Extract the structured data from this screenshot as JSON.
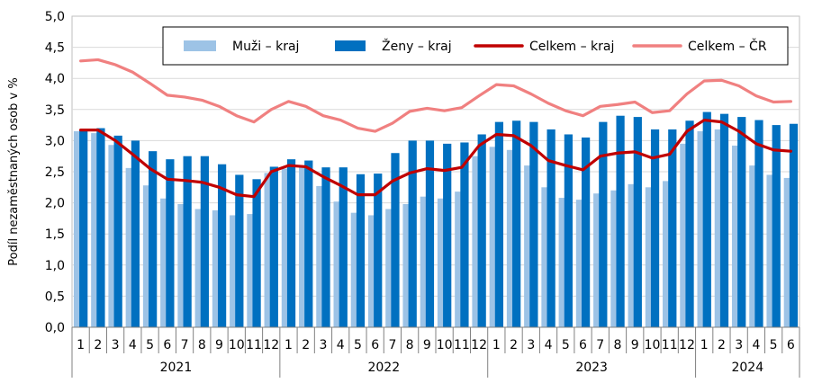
{
  "chart_data": {
    "type": "bar",
    "ylabel": "Podíl nezaměstnaných osob v %",
    "xlabel": "",
    "ylim": [
      0,
      5
    ],
    "ytick_step": 0.5,
    "ytick_labels": [
      "0,0",
      "0,5",
      "1,0",
      "1,5",
      "2,0",
      "2,5",
      "3,0",
      "3,5",
      "4,0",
      "4,5",
      "5,0"
    ],
    "grid": true,
    "legend_position": "top-right",
    "categories": [
      "1",
      "2",
      "3",
      "4",
      "5",
      "6",
      "7",
      "8",
      "9",
      "10",
      "11",
      "12",
      "1",
      "2",
      "3",
      "4",
      "5",
      "6",
      "7",
      "8",
      "9",
      "10",
      "11",
      "12",
      "1",
      "2",
      "3",
      "4",
      "5",
      "6",
      "7",
      "8",
      "9",
      "10",
      "11",
      "12",
      "1",
      "2",
      "3",
      "4",
      "5",
      "6"
    ],
    "years": [
      {
        "label": "2021",
        "months": 12
      },
      {
        "label": "2022",
        "months": 12
      },
      {
        "label": "2023",
        "months": 12
      },
      {
        "label": "2024",
        "months": 6
      }
    ],
    "series": [
      {
        "name": "Muži – kraj",
        "kind": "bar",
        "color": "#9DC3E6",
        "values": [
          3.15,
          3.12,
          2.93,
          2.56,
          2.28,
          2.07,
          1.98,
          1.9,
          1.88,
          1.8,
          1.82,
          2.48,
          2.55,
          2.58,
          2.27,
          2.02,
          1.84,
          1.8,
          1.9,
          1.98,
          2.1,
          2.07,
          2.18,
          2.75,
          2.9,
          2.85,
          2.6,
          2.25,
          2.08,
          2.05,
          2.15,
          2.2,
          2.3,
          2.25,
          2.35,
          2.95,
          3.15,
          3.18,
          2.92,
          2.6,
          2.45,
          2.4
        ]
      },
      {
        "name": "Ženy – kraj",
        "kind": "bar",
        "color": "#0070C0",
        "values": [
          3.18,
          3.2,
          3.08,
          3.0,
          2.83,
          2.7,
          2.75,
          2.75,
          2.62,
          2.45,
          2.38,
          2.58,
          2.7,
          2.68,
          2.57,
          2.57,
          2.46,
          2.47,
          2.8,
          3.0,
          3.0,
          2.95,
          2.97,
          3.1,
          3.3,
          3.32,
          3.3,
          3.18,
          3.1,
          3.05,
          3.3,
          3.4,
          3.38,
          3.18,
          3.18,
          3.32,
          3.46,
          3.43,
          3.38,
          3.33,
          3.25,
          3.27
        ]
      },
      {
        "name": "Celkem – kraj",
        "kind": "line",
        "color": "#C00000",
        "values": [
          3.17,
          3.17,
          3.0,
          2.78,
          2.55,
          2.38,
          2.36,
          2.33,
          2.25,
          2.13,
          2.1,
          2.5,
          2.6,
          2.58,
          2.42,
          2.28,
          2.13,
          2.13,
          2.35,
          2.48,
          2.55,
          2.52,
          2.57,
          2.92,
          3.1,
          3.08,
          2.92,
          2.68,
          2.6,
          2.53,
          2.75,
          2.8,
          2.82,
          2.72,
          2.78,
          3.15,
          3.33,
          3.3,
          3.15,
          2.95,
          2.85,
          2.83
        ]
      },
      {
        "name": "Celkem – ČR",
        "kind": "line",
        "color": "#F08080",
        "values": [
          4.28,
          4.3,
          4.22,
          4.1,
          3.92,
          3.73,
          3.7,
          3.65,
          3.55,
          3.4,
          3.3,
          3.5,
          3.63,
          3.55,
          3.4,
          3.33,
          3.2,
          3.15,
          3.28,
          3.47,
          3.52,
          3.48,
          3.53,
          3.72,
          3.9,
          3.88,
          3.75,
          3.6,
          3.48,
          3.4,
          3.55,
          3.58,
          3.62,
          3.45,
          3.48,
          3.75,
          3.96,
          3.97,
          3.88,
          3.72,
          3.62,
          3.63
        ]
      }
    ]
  }
}
